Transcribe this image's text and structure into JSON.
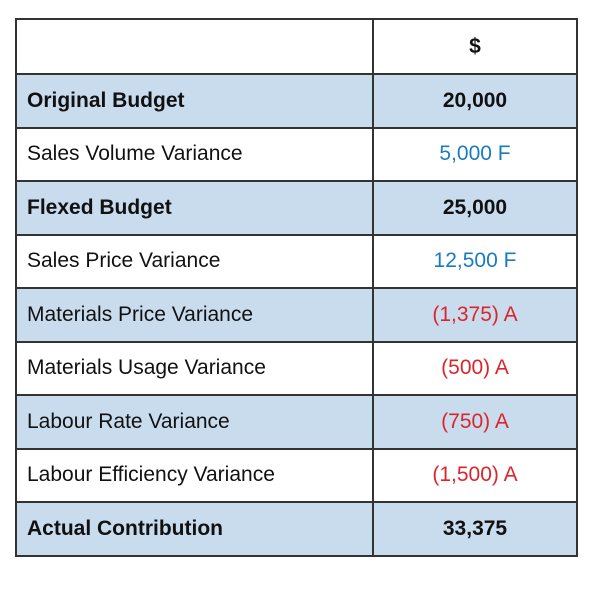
{
  "table": {
    "header": {
      "amount": "$"
    },
    "rows": [
      {
        "label": "Original Budget",
        "amount": "20,000",
        "bold": true,
        "color": "#111111"
      },
      {
        "label": "Sales Volume Variance",
        "amount": "5,000 F",
        "bold": false,
        "color": "#1a7bbf"
      },
      {
        "label": "Flexed Budget",
        "amount": "25,000",
        "bold": true,
        "color": "#111111"
      },
      {
        "label": "Sales Price Variance",
        "amount": "12,500 F",
        "bold": false,
        "color": "#1a7bbf"
      },
      {
        "label": "Materials Price Variance",
        "amount": "(1,375) A",
        "bold": false,
        "color": "#d9262c"
      },
      {
        "label": "Materials Usage Variance",
        "amount": "(500) A",
        "bold": false,
        "color": "#d9262c"
      },
      {
        "label": "Labour Rate Variance",
        "amount": "(750) A",
        "bold": false,
        "color": "#d9262c"
      },
      {
        "label": "Labour Efficiency Variance",
        "amount": "(1,500) A",
        "bold": false,
        "color": "#d9262c"
      },
      {
        "label": "Actual Contribution",
        "amount": "33,375",
        "bold": true,
        "color": "#111111"
      }
    ],
    "band_color": "#c9dcee"
  }
}
